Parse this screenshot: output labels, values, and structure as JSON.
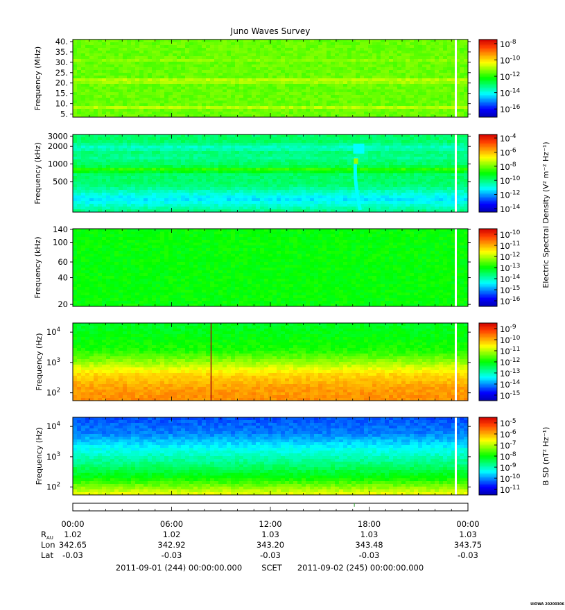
{
  "title": "Juno Waves Survey",
  "footer_note": "UIOWA 20200306",
  "colors": {
    "colormap": [
      "#0000b4",
      "#0000ff",
      "#0080ff",
      "#00ffff",
      "#00ff80",
      "#00ff00",
      "#80ff00",
      "#ffff00",
      "#ffa000",
      "#ff4000",
      "#d00000"
    ],
    "blank_stripe": "#ffffff",
    "event_line": "#a01010"
  },
  "chart_data": [
    {
      "type": "heatmap",
      "panel": "wfr_hf_high",
      "ylabel": "Frequency (MHz)",
      "ytick_labels": [
        "40.",
        "35.",
        "30.",
        "25.",
        "20.",
        "15.",
        "10.",
        "5."
      ],
      "ytick_values": [
        40,
        35,
        30,
        25,
        20,
        15,
        10,
        5
      ],
      "ylim": [
        3.5,
        41
      ],
      "yscale": "linear",
      "background_level": 0.58,
      "bands": [
        {
          "freq": 21,
          "level": 0.7,
          "width": 1.2
        },
        {
          "freq": 8.5,
          "level": 0.68,
          "width": 0.8
        },
        {
          "freq": 31,
          "level": 0.61,
          "width": 0.6
        }
      ],
      "colorbar": {
        "exponents": [
          "-8",
          "-10",
          "-12",
          "-14",
          "-16"
        ],
        "min_exp": -17,
        "max_exp": -7.5
      }
    },
    {
      "type": "heatmap",
      "panel": "hf_low",
      "ylabel": "Frequency (kHz)",
      "ytick_labels": [
        "3000",
        "2000",
        "1000",
        "500"
      ],
      "ytick_values": [
        3000,
        2000,
        1000,
        500
      ],
      "ylim": [
        150,
        3200
      ],
      "yscale": "log",
      "background_level": 0.42,
      "bands": [
        {
          "freq": 1900,
          "level": 0.34,
          "width": 0.1
        },
        {
          "freq": 1300,
          "level": 0.38,
          "width": 0.08
        },
        {
          "freq": 800,
          "level": 0.55,
          "width": 0.07
        },
        {
          "freq": 250,
          "level": 0.28,
          "width": 0.25
        }
      ],
      "event": {
        "time_hours": 17.2,
        "description_level": 0.62
      },
      "colorbar": {
        "exponents": [
          "-4",
          "-6",
          "-8",
          "-10",
          "-12",
          "-14"
        ],
        "min_exp": -14.5,
        "max_exp": -3.5
      },
      "colorbar_label": "Electric Spectral Density (V² m⁻² Hz⁻¹)"
    },
    {
      "type": "heatmap",
      "panel": "lfr_high",
      "ylabel": "Frequency (kHz)",
      "ytick_labels": [
        "140",
        "100",
        "60",
        "40",
        "20"
      ],
      "ytick_values": [
        140,
        100,
        60,
        40,
        20
      ],
      "ylim": [
        19,
        142
      ],
      "yscale": "log",
      "background_level": 0.5,
      "bands": [],
      "colorbar": {
        "exponents": [
          "-10",
          "-11",
          "-12",
          "-13",
          "-14",
          "-15",
          "-16"
        ],
        "min_exp": -16.5,
        "max_exp": -9.5
      }
    },
    {
      "type": "heatmap",
      "panel": "lfr_low_e",
      "ylabel": "Frequency (Hz)",
      "ytick_labels": [
        "10",
        "10",
        "10"
      ],
      "ytick_exponents": [
        "4",
        "3",
        "2"
      ],
      "ytick_values": [
        10000,
        1000,
        100
      ],
      "ylim": [
        55,
        20000
      ],
      "yscale": "log",
      "profile": [
        [
          55,
          0.82
        ],
        [
          150,
          0.8
        ],
        [
          400,
          0.74
        ],
        [
          1000,
          0.62
        ],
        [
          2500,
          0.52
        ],
        [
          20000,
          0.47
        ]
      ],
      "event": {
        "time_hours": 8.4
      },
      "colorbar": {
        "exponents": [
          "-9",
          "-10",
          "-11",
          "-12",
          "-13",
          "-14",
          "-15"
        ],
        "min_exp": -15.5,
        "max_exp": -8.5
      }
    },
    {
      "type": "heatmap",
      "panel": "lfr_low_b",
      "ylabel": "Frequency (Hz)",
      "ytick_labels": [
        "10",
        "10",
        "10"
      ],
      "ytick_exponents": [
        "4",
        "3",
        "2"
      ],
      "ytick_values": [
        10000,
        1000,
        100
      ],
      "ylim": [
        55,
        20000
      ],
      "yscale": "log",
      "profile": [
        [
          55,
          0.7
        ],
        [
          90,
          0.62
        ],
        [
          200,
          0.5
        ],
        [
          600,
          0.4
        ],
        [
          2000,
          0.3
        ],
        [
          6000,
          0.2
        ],
        [
          20000,
          0.16
        ]
      ],
      "colorbar": {
        "exponents": [
          "-5",
          "-6",
          "-7",
          "-8",
          "-9",
          "-10",
          "-11"
        ],
        "min_exp": -11.5,
        "max_exp": -4.5
      },
      "colorbar_label": "B SD (nT² Hz⁻¹)"
    }
  ],
  "time_axis": {
    "start_hours": 0,
    "end_hours": 24,
    "ticks": [
      "00:00",
      "06:00",
      "12:00",
      "18:00",
      "00:00"
    ],
    "data_gap_hours": 23.2,
    "rows": [
      {
        "label": "R",
        "sub": "AU",
        "values": [
          "1.02",
          "1.02",
          "1.03",
          "1.03",
          "1.03"
        ]
      },
      {
        "label": "Lon",
        "sub": "",
        "values": [
          "342.65",
          "342.92",
          "343.20",
          "343.48",
          "343.75"
        ]
      },
      {
        "label": "Lat",
        "sub": "",
        "values": [
          "-0.03",
          "-0.03",
          "-0.03",
          "-0.03",
          "-0.03"
        ]
      }
    ],
    "scet_start": "2011-09-01 (244) 00:00:00.000",
    "scet_label": "SCET",
    "scet_end": "2011-09-02 (245) 00:00:00.000"
  }
}
